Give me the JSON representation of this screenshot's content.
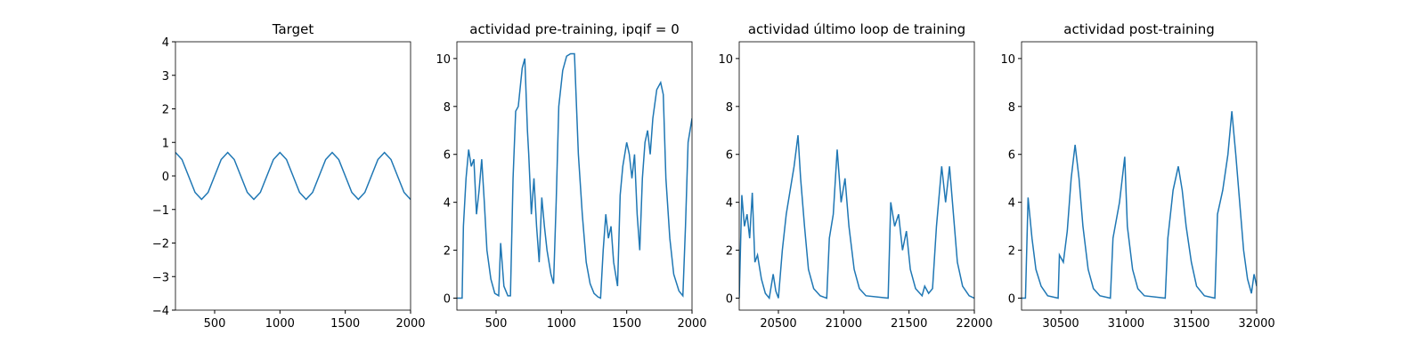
{
  "chart_data": [
    {
      "type": "line",
      "title": "Target",
      "x": [
        200,
        250,
        300,
        350,
        400,
        450,
        500,
        550,
        600,
        650,
        700,
        750,
        800,
        850,
        900,
        950,
        1000,
        1050,
        1100,
        1150,
        1200,
        1250,
        1300,
        1350,
        1400,
        1450,
        1500,
        1550,
        1600,
        1650,
        1700,
        1750,
        1800,
        1850,
        1900,
        1950,
        2000
      ],
      "values": [
        0.7,
        0.49,
        0,
        -0.49,
        -0.7,
        -0.49,
        0,
        0.49,
        0.7,
        0.49,
        0,
        -0.49,
        -0.7,
        -0.49,
        0,
        0.49,
        0.7,
        0.49,
        0,
        -0.49,
        -0.7,
        -0.49,
        0,
        0.49,
        0.7,
        0.49,
        0,
        -0.49,
        -0.7,
        -0.49,
        0,
        0.49,
        0.7,
        0.49,
        0,
        -0.49,
        -0.7
      ],
      "color": "#1f77b4",
      "xlim": [
        200,
        2000
      ],
      "xticks": [
        500,
        1000,
        1500,
        2000
      ],
      "ylim": [
        -4,
        4
      ],
      "yticks": [
        {
          "value": -4,
          "label": "−4"
        },
        {
          "value": -3,
          "label": "−3"
        },
        {
          "value": -2,
          "label": "−2"
        },
        {
          "value": -1,
          "label": "−1"
        },
        0,
        1,
        2,
        3,
        4
      ]
    },
    {
      "type": "line",
      "title": "actividad pre-training, ipqif = 0",
      "x": [
        200,
        240,
        250,
        270,
        290,
        310,
        330,
        350,
        370,
        390,
        410,
        430,
        460,
        490,
        520,
        535,
        560,
        590,
        610,
        630,
        650,
        670,
        700,
        720,
        740,
        750,
        770,
        790,
        810,
        830,
        850,
        870,
        890,
        920,
        940,
        960,
        980,
        1010,
        1040,
        1070,
        1100,
        1130,
        1160,
        1190,
        1220,
        1250,
        1280,
        1300,
        1320,
        1340,
        1360,
        1380,
        1400,
        1430,
        1450,
        1470,
        1500,
        1520,
        1540,
        1560,
        1580,
        1600,
        1620,
        1640,
        1660,
        1680,
        1700,
        1730,
        1760,
        1780,
        1800,
        1830,
        1860,
        1900,
        1930,
        1950,
        1970,
        2000
      ],
      "values": [
        0,
        0,
        3,
        5,
        6.2,
        5.5,
        5.8,
        3.5,
        4.5,
        5.8,
        4,
        2,
        0.8,
        0.2,
        0.1,
        2.3,
        0.5,
        0.1,
        0.1,
        5,
        7.8,
        8,
        9.6,
        10,
        7,
        6,
        3.5,
        5,
        3,
        1.5,
        4.2,
        3,
        2,
        1,
        0.6,
        4,
        8,
        9.5,
        10.1,
        10.2,
        10.2,
        6,
        3.5,
        1.5,
        0.6,
        0.2,
        0.05,
        0,
        2,
        3.5,
        2.5,
        3,
        1.5,
        0.5,
        4.3,
        5.5,
        6.5,
        6,
        5,
        6,
        3.5,
        2,
        5,
        6.5,
        7,
        6,
        7.5,
        8.7,
        9,
        8.5,
        5,
        2.5,
        1,
        0.3,
        0.1,
        3,
        6.5,
        7.5
      ],
      "color": "#1f77b4",
      "xlim": [
        200,
        2000
      ],
      "xticks": [
        500,
        1000,
        1500,
        2000
      ],
      "ylim": [
        -0.5,
        10.7
      ],
      "yticks": [
        0,
        2,
        4,
        6,
        8,
        10
      ]
    },
    {
      "type": "line",
      "title": "actividad último loop de training",
      "x": [
        20200,
        20220,
        20240,
        20260,
        20280,
        20300,
        20320,
        20340,
        20370,
        20400,
        20430,
        20460,
        20480,
        20500,
        20530,
        20560,
        20590,
        20620,
        20650,
        20670,
        20700,
        20730,
        20770,
        20820,
        20870,
        20890,
        20920,
        20950,
        20980,
        21010,
        21040,
        21080,
        21120,
        21170,
        21340,
        21360,
        21390,
        21420,
        21450,
        21480,
        21510,
        21550,
        21600,
        21620,
        21650,
        21680,
        21710,
        21750,
        21780,
        21810,
        21840,
        21870,
        21910,
        21960,
        22000
      ],
      "values": [
        0,
        4.3,
        3,
        3.5,
        2.5,
        4.4,
        1.5,
        1.8,
        0.8,
        0.2,
        0,
        1,
        0.3,
        0,
        2,
        3.5,
        4.5,
        5.5,
        6.8,
        5,
        3,
        1.2,
        0.4,
        0.1,
        0,
        2.5,
        3.5,
        6.2,
        4,
        5,
        3,
        1.2,
        0.4,
        0.1,
        0,
        4,
        3,
        3.5,
        2,
        2.8,
        1.2,
        0.4,
        0.1,
        0.5,
        0.2,
        0.4,
        3,
        5.5,
        4,
        5.5,
        3.5,
        1.5,
        0.5,
        0.1,
        0
      ],
      "color": "#1f77b4",
      "xlim": [
        20200,
        22000
      ],
      "xticks": [
        20500,
        21000,
        21500,
        22000
      ],
      "ylim": [
        -0.5,
        10.7
      ],
      "yticks": [
        0,
        2,
        4,
        6,
        8,
        10
      ]
    },
    {
      "type": "line",
      "title": "actividad post-training",
      "x": [
        30200,
        30230,
        30250,
        30280,
        30310,
        30350,
        30400,
        30480,
        30490,
        30520,
        30550,
        30580,
        30610,
        30640,
        30670,
        30710,
        30750,
        30800,
        30880,
        30900,
        30950,
        30990,
        31010,
        31050,
        31090,
        31140,
        31300,
        31320,
        31360,
        31400,
        31430,
        31460,
        31500,
        31540,
        31600,
        31680,
        31700,
        31740,
        31780,
        31810,
        31840,
        31870,
        31900,
        31930,
        31960,
        31980,
        32000
      ],
      "values": [
        0,
        0,
        4.2,
        2.5,
        1.2,
        0.5,
        0.1,
        0,
        1.8,
        1.5,
        2.8,
        5,
        6.4,
        5,
        3,
        1.2,
        0.4,
        0.1,
        0,
        2.5,
        4,
        5.9,
        3,
        1.2,
        0.4,
        0.1,
        0,
        2.5,
        4.5,
        5.5,
        4.5,
        3,
        1.5,
        0.5,
        0.1,
        0,
        3.5,
        4.5,
        6,
        7.8,
        6,
        4,
        2,
        0.8,
        0.2,
        1,
        0.5
      ],
      "color": "#1f77b4",
      "xlim": [
        30200,
        32000
      ],
      "xticks": [
        30500,
        31000,
        31500,
        32000
      ],
      "ylim": [
        -0.5,
        10.7
      ],
      "yticks": [
        0,
        2,
        4,
        6,
        8,
        10
      ]
    }
  ]
}
